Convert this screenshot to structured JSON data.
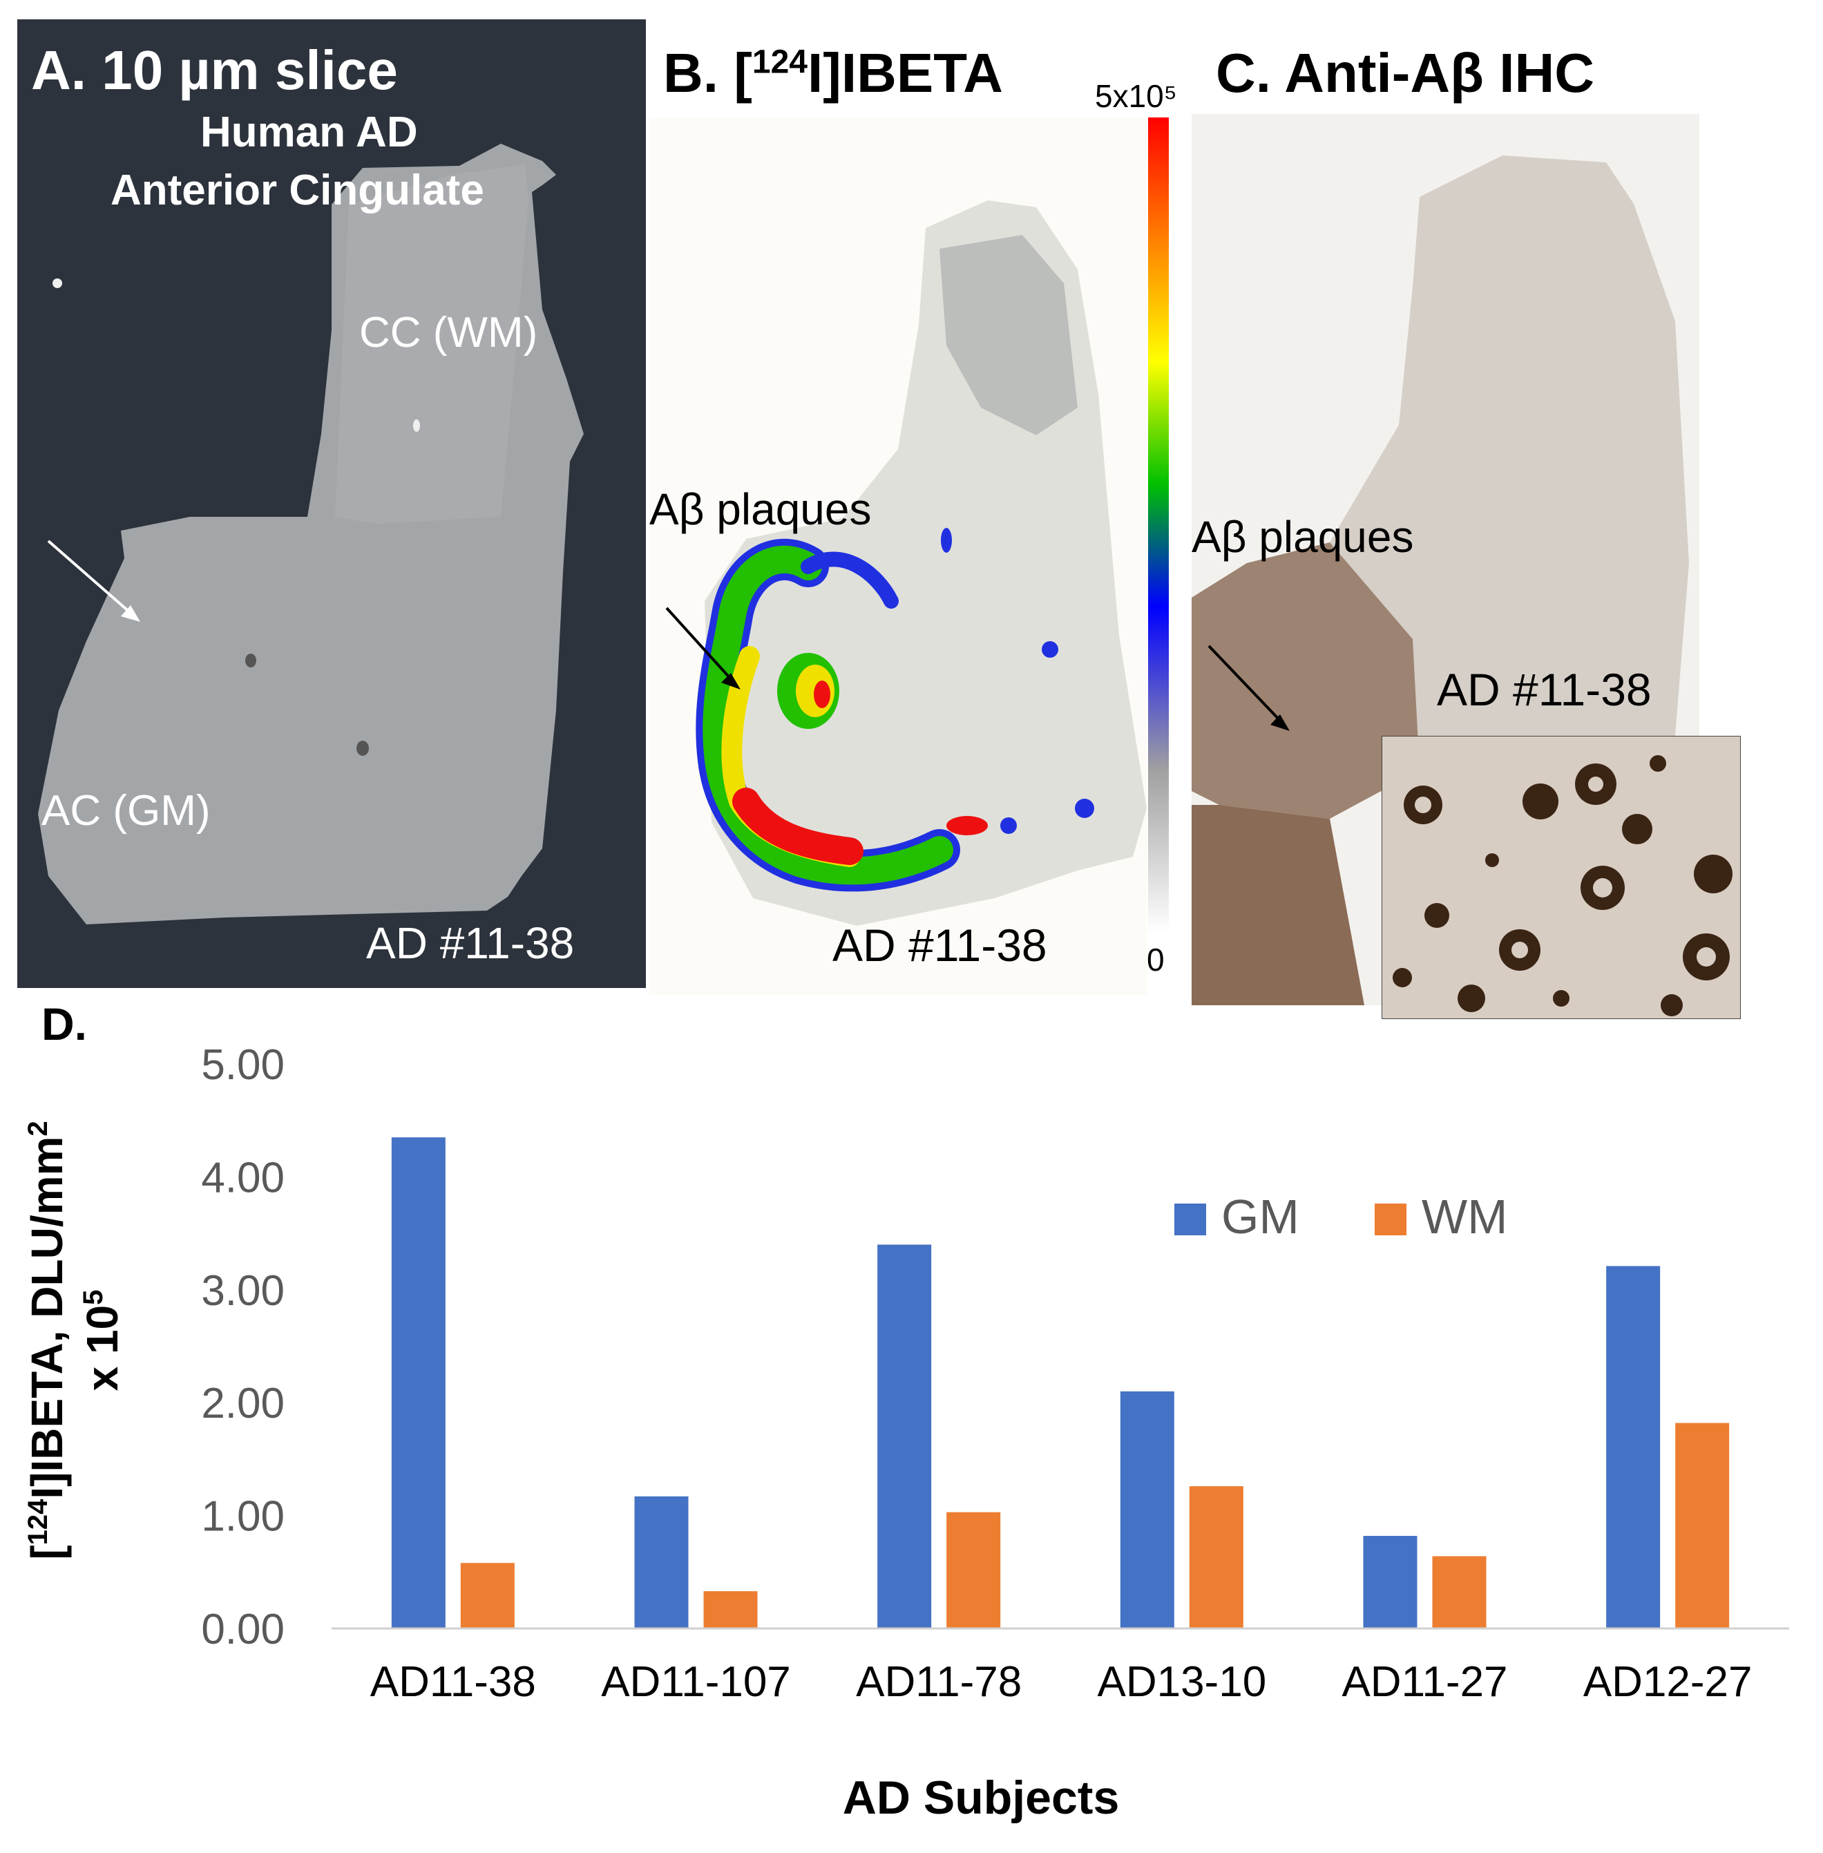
{
  "panelA": {
    "title": "A. 10 µm slice",
    "subtitle_line1": "Human AD",
    "subtitle_line2": "Anterior Cingulate",
    "label_wm": "CC (WM)",
    "label_gm": "AC (GM)",
    "subject": "AD #11-38"
  },
  "panelB": {
    "title_prefix": "B. [",
    "title_sup": "124",
    "title_suffix": "I]IBETA",
    "scale_max": "5x10⁵",
    "scale_min": "0",
    "plaques": "Aβ plaques",
    "subject": "AD #11-38"
  },
  "panelC": {
    "title": "C. Anti-Aβ IHC",
    "plaques": "Aβ plaques",
    "subject": "AD #11-38"
  },
  "colors": {
    "gm": "#4472C4",
    "wm": "#ED7D31",
    "axis": "#d0d0d0",
    "tick_text": "#595959"
  },
  "chart_data": {
    "type": "bar",
    "panel_label": "D.",
    "categories": [
      "AD11-38",
      "AD11-107",
      "AD11-78",
      "AD13-10",
      "AD11-27",
      "AD12-27"
    ],
    "series": [
      {
        "name": "GM",
        "values": [
          4.35,
          1.17,
          3.4,
          2.1,
          0.82,
          3.21
        ]
      },
      {
        "name": "WM",
        "values": [
          0.58,
          0.33,
          1.03,
          1.26,
          0.64,
          1.82
        ]
      }
    ],
    "ylim": [
      0,
      5
    ],
    "yticks": [
      "0.00",
      "1.00",
      "2.00",
      "3.00",
      "4.00",
      "5.00"
    ],
    "ylabel_prefix": "[",
    "ylabel_sup1": "124",
    "ylabel_mid": "I]IBETA, DLU/mm",
    "ylabel_sup2": "2",
    "ylabel_line2": "x 10",
    "ylabel_sup3": "5",
    "xlabel": "AD Subjects",
    "legend_position": "top-right",
    "grid": false
  }
}
